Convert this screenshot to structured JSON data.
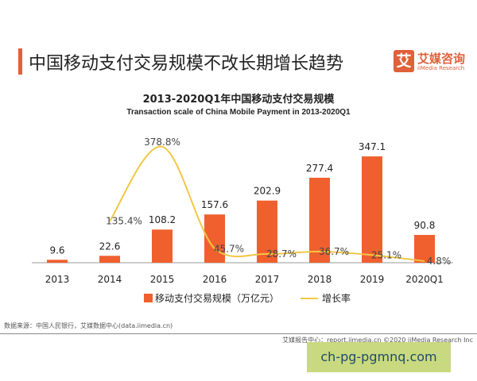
{
  "header": {
    "title": "中国移动支付交易规模不改长期增长趋势"
  },
  "logo": {
    "mark": "艾",
    "cn": "艾媒咨询",
    "en": "iiMedia Research"
  },
  "chart_data": {
    "type": "bar+line",
    "title": "2013-2020Q1年中国移动支付交易规模",
    "subtitle": "Transaction scale of China Mobile Payment in 2013-2020Q1",
    "categories": [
      "2013",
      "2014",
      "2015",
      "2016",
      "2017",
      "2018",
      "2019",
      "2020Q1"
    ],
    "series": [
      {
        "name": "移动支付交易规模（万亿元）",
        "type": "bar",
        "color": "#f0602e",
        "values": [
          9.6,
          22.6,
          108.2,
          157.6,
          202.9,
          277.4,
          347.1,
          90.8
        ],
        "labels": [
          "9.6",
          "22.6",
          "108.2",
          "157.6",
          "202.9",
          "277.4",
          "347.1",
          "90.8"
        ]
      },
      {
        "name": "增长率",
        "type": "line",
        "color": "#f2c744",
        "values": [
          null,
          135.4,
          378.8,
          45.7,
          28.7,
          36.7,
          25.1,
          4.8
        ],
        "labels": [
          "",
          "135.4%",
          "378.8%",
          "45.7%",
          "28.7%",
          "36.7%",
          "25.1%",
          "4.8%"
        ]
      }
    ],
    "legend": "bottom",
    "grid": false
  },
  "footer": {
    "source": "数据来源：中国人民银行，艾媒数据中心(data.iimedia.cn)",
    "credit": "艾媒报告中心：report.iimedia.cn   ©2020  iiMedia Research  Inc",
    "watermark": "ch-pg-pgmnq.com"
  }
}
